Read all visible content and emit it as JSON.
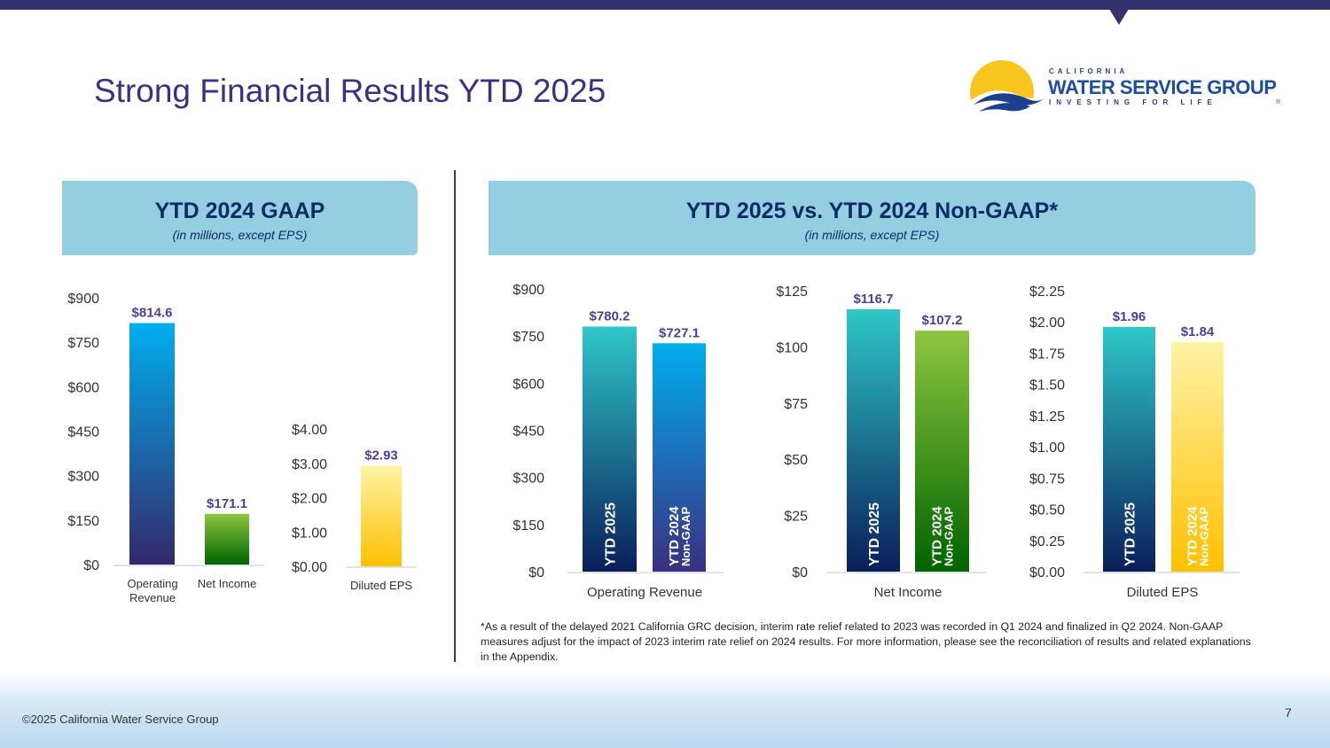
{
  "title": "Strong Financial Results YTD 2025",
  "logo": {
    "line1": "CALIFORNIA",
    "line2": "WATER SERVICE GROUP",
    "line3": "INVESTING FOR LIFE",
    "mark": "®"
  },
  "left_header": {
    "title": "YTD 2024 GAAP",
    "subtitle": "(in millions, except EPS)"
  },
  "right_header": {
    "title": "YTD 2025 vs. YTD 2024 Non-GAAP*",
    "subtitle": "(in millions, except EPS)"
  },
  "footnote": "*As a result of the delayed 2021 California GRC decision, interim rate relief related to 2023 was recorded in Q1 2024 and finalized in Q2 2024. Non-GAAP measures adjust for the impact of 2023 interim rate relief on 2024 results. For more information, please see the reconciliation of results and related explanations in the Appendix.",
  "footer": {
    "copyright": "©2025 California Water Service Group",
    "page": "7"
  },
  "colors": {
    "title": "#3a3185",
    "value_label": "#4b3f9a",
    "header_bg": "#93cfe0"
  },
  "chart_data": [
    {
      "type": "bar",
      "title": "",
      "categories": [
        "Operating Revenue",
        "Net Income"
      ],
      "values": [
        814.6,
        171.1
      ],
      "labels": [
        "$814.6",
        "$171.1"
      ],
      "yticks": [
        "$0",
        "$150",
        "$300",
        "$450",
        "$600",
        "$750",
        "$900"
      ],
      "ylim": [
        0,
        900
      ],
      "colors": [
        [
          "#00aeef",
          "#33296b"
        ],
        [
          "#8dc63f",
          "#006400"
        ]
      ]
    },
    {
      "type": "bar",
      "title": "",
      "categories": [
        "Diluted EPS"
      ],
      "values": [
        2.93
      ],
      "labels": [
        "$2.93"
      ],
      "yticks": [
        "$0.00",
        "$1.00",
        "$2.00",
        "$3.00",
        "$4.00"
      ],
      "ylim": [
        0,
        4
      ],
      "colors": [
        [
          "#fff3a6",
          "#ffc000"
        ]
      ]
    },
    {
      "type": "bar",
      "category": "Operating Revenue",
      "series": [
        {
          "name": "YTD 2025",
          "value": 780.2,
          "label": "$780.2",
          "colors": [
            "#2ec7c9",
            "#0a1e5a"
          ]
        },
        {
          "name": "YTD 2024 Non-GAAP",
          "value": 727.1,
          "label": "$727.1",
          "colors": [
            "#00aeef",
            "#3a2f80"
          ]
        }
      ],
      "yticks": [
        "$0",
        "$150",
        "$300",
        "$450",
        "$600",
        "$750",
        "$900"
      ],
      "ylim": [
        0,
        900
      ]
    },
    {
      "type": "bar",
      "category": "Net Income",
      "series": [
        {
          "name": "YTD 2025",
          "value": 116.7,
          "label": "$116.7",
          "colors": [
            "#2ec7c9",
            "#0a1e5a"
          ]
        },
        {
          "name": "YTD 2024 Non-GAAP",
          "value": 107.2,
          "label": "$107.2",
          "colors": [
            "#8dc63f",
            "#006400"
          ]
        }
      ],
      "yticks": [
        "$0",
        "$25",
        "$50",
        "$75",
        "$100",
        "$125"
      ],
      "ylim": [
        0,
        125
      ]
    },
    {
      "type": "bar",
      "category": "Diluted EPS",
      "series": [
        {
          "name": "YTD 2025",
          "value": 1.96,
          "label": "$1.96",
          "colors": [
            "#2ec7c9",
            "#0a1e5a"
          ]
        },
        {
          "name": "YTD 2024 Non-GAAP",
          "value": 1.84,
          "label": "$1.84",
          "colors": [
            "#fff3a6",
            "#ffc000"
          ]
        }
      ],
      "yticks": [
        "$0.00",
        "$0.25",
        "$0.50",
        "$0.75",
        "$1.00",
        "$1.25",
        "$1.50",
        "$1.75",
        "$2.00",
        "$2.25"
      ],
      "ylim": [
        0,
        2.25
      ]
    }
  ]
}
